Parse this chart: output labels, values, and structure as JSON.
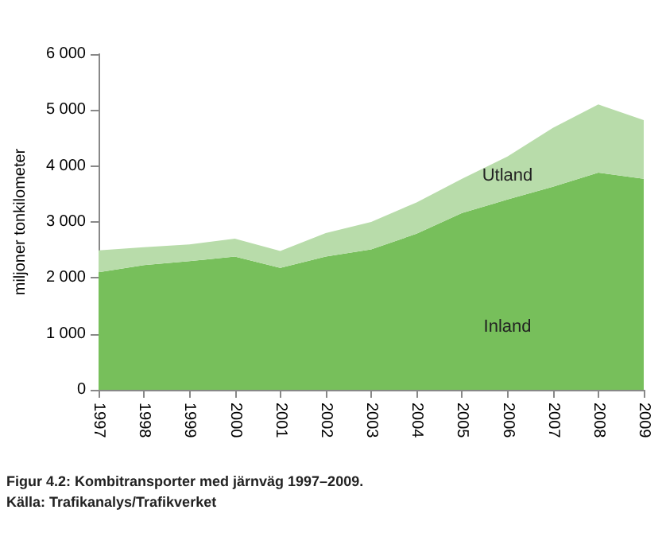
{
  "chart_data": {
    "type": "area",
    "stacked": true,
    "ylabel": "miljoner tonkilometer",
    "categories": [
      "1997",
      "1998",
      "1999",
      "2000",
      "2001",
      "2002",
      "2003",
      "2004",
      "2005",
      "2006",
      "2007",
      "2008",
      "2009"
    ],
    "series": [
      {
        "name": "Inland",
        "color": "#77bf5b",
        "values": [
          2100,
          2230,
          2300,
          2380,
          2180,
          2380,
          2510,
          2790,
          3160,
          3400,
          3630,
          3880,
          3770
        ]
      },
      {
        "name": "Utland",
        "color": "#b8dcaa",
        "values": [
          390,
          320,
          300,
          320,
          300,
          420,
          490,
          560,
          610,
          770,
          1050,
          1220,
          1050
        ]
      }
    ],
    "ylim": [
      0,
      6000
    ],
    "yticks": [
      0,
      {
        "value": 1000,
        "label": "1 000"
      },
      {
        "value": 2000,
        "label": "2 000"
      },
      {
        "value": 3000,
        "label": "3 000"
      },
      {
        "value": 4000,
        "label": "4 000"
      },
      {
        "value": 5000,
        "label": "5 000"
      },
      {
        "value": 6000,
        "label": "6 000"
      }
    ],
    "grid": false,
    "legend": false,
    "annotations": [
      "Figur 4.2: Kombitransporter med järnväg 1997–2009.",
      "Källa: Trafikanalys/Trafikverket"
    ]
  }
}
